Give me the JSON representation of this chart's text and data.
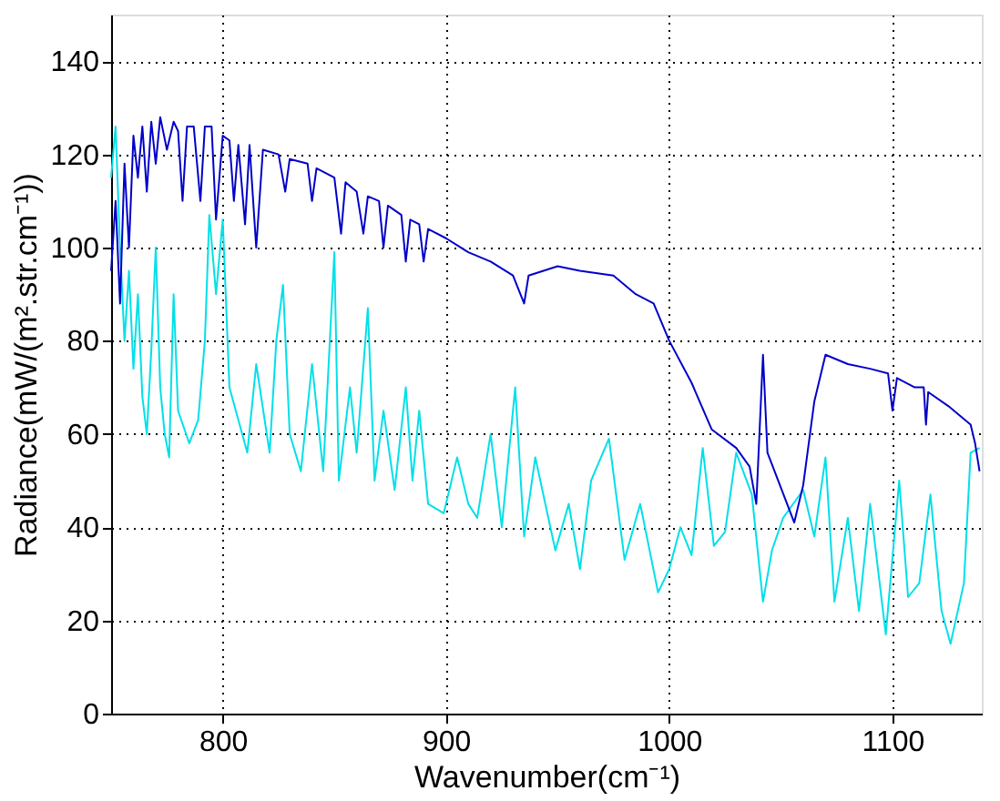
{
  "chart_data": {
    "type": "line",
    "xlabel": "Wavenumber(cm⁻¹)",
    "ylabel": "Radiance(mW/(m².str.cm⁻¹))",
    "xlim": [
      750,
      1140
    ],
    "xticks": [
      800,
      900,
      1000,
      1100
    ],
    "ylim": [
      0,
      150
    ],
    "yticks": [
      0,
      20,
      40,
      60,
      80,
      100,
      120,
      140
    ],
    "grid": true,
    "line_style": "solid",
    "marker": "none",
    "series": [
      {
        "color": "#00e0e8",
        "x": [
          750,
          752,
          754,
          756,
          758,
          760,
          762,
          764,
          766,
          768,
          770,
          772,
          774,
          776,
          778,
          780,
          785,
          789,
          792,
          794,
          797,
          800,
          803,
          811,
          815,
          821,
          824,
          827,
          830,
          835,
          840,
          845,
          850,
          852,
          857,
          860,
          865,
          868,
          872,
          877,
          882,
          885,
          888,
          892,
          899,
          905,
          910,
          914,
          920,
          925,
          931,
          935,
          940,
          949,
          955,
          960,
          965,
          973,
          980,
          987,
          995,
          1000,
          1005,
          1010,
          1015,
          1020,
          1025,
          1030,
          1037,
          1042,
          1046,
          1051,
          1060,
          1065,
          1070,
          1074,
          1080,
          1085,
          1090,
          1097,
          1103,
          1107,
          1112,
          1117,
          1122,
          1126,
          1132,
          1135,
          1139
        ],
        "values": [
          115,
          126,
          100,
          80,
          95,
          74,
          90,
          68,
          60,
          78,
          100,
          70,
          60,
          55,
          90,
          65,
          58,
          63,
          80,
          107,
          90,
          106,
          70,
          56,
          75,
          56,
          80,
          92,
          60,
          52,
          75,
          52,
          99,
          50,
          70,
          56,
          87,
          50,
          65,
          48,
          70,
          50,
          65,
          45,
          43,
          55,
          45,
          42,
          60,
          40,
          70,
          38,
          55,
          35,
          45,
          31,
          50,
          59,
          33,
          45,
          26,
          31,
          40,
          34,
          57,
          36,
          39,
          56,
          47,
          24,
          35,
          42,
          48,
          38,
          55,
          24,
          42,
          22,
          45,
          17,
          50,
          25,
          28,
          47,
          22,
          15,
          28,
          56,
          57
        ]
      },
      {
        "color": "#0000c8",
        "x": [
          750,
          752,
          754,
          756,
          758,
          760,
          762,
          764,
          766,
          768,
          770,
          772,
          775,
          778,
          780,
          782,
          784,
          787,
          790,
          792,
          795,
          797,
          800,
          803,
          805,
          807,
          810,
          812,
          815,
          818,
          825,
          828,
          830,
          838,
          840,
          842,
          850,
          853,
          855,
          860,
          863,
          865,
          870,
          872,
          874,
          880,
          882,
          884,
          888,
          890,
          892,
          900,
          910,
          920,
          930,
          935,
          937,
          950,
          960,
          975,
          985,
          993,
          1000,
          1010,
          1019,
          1030,
          1036,
          1039,
          1042,
          1044,
          1056,
          1060,
          1065,
          1070,
          1080,
          1090,
          1098,
          1100,
          1102,
          1110,
          1114,
          1115,
          1116,
          1125,
          1130,
          1135,
          1137,
          1139
        ],
        "values": [
          95,
          110,
          88,
          118,
          100,
          124,
          115,
          126,
          112,
          127,
          118,
          128,
          121,
          127,
          125,
          110,
          126,
          126,
          110,
          126,
          126,
          106,
          124,
          123,
          110,
          122,
          105,
          122,
          100,
          121,
          120,
          112,
          119,
          118,
          110,
          117,
          115,
          103,
          114,
          112,
          103,
          111,
          110,
          100,
          109,
          107,
          97,
          106,
          105,
          97,
          104,
          102,
          99,
          97,
          94,
          88,
          94,
          96,
          95,
          94,
          90,
          88,
          80,
          71,
          61,
          57,
          53,
          45,
          77,
          56,
          41,
          49,
          67,
          77,
          75,
          74,
          73,
          65,
          72,
          70,
          70,
          62,
          69,
          66,
          64,
          62,
          58,
          52
        ]
      }
    ]
  }
}
